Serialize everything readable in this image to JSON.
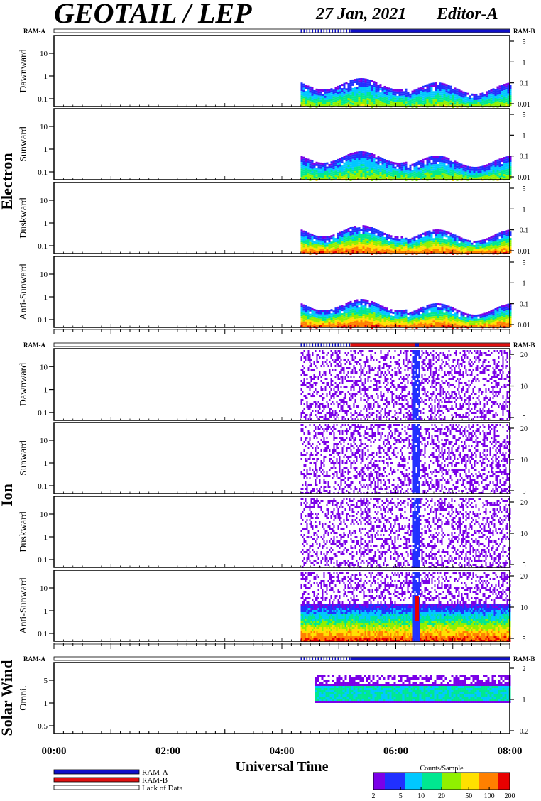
{
  "header": {
    "title": "GEOTAIL / LEP",
    "date": "27 Jan, 2021",
    "editor": "Editor-A"
  },
  "ram_a_label": "RAM-A",
  "ram_b_label": "RAM-B",
  "colors": {
    "ram_a": "#1010c8",
    "ram_b": "#e01010",
    "lack": "#ffffff"
  },
  "chart_data": {
    "type": "heatmap",
    "xlabel": "Universal Time",
    "x_ticks": [
      "00:00",
      "02:00",
      "04:00",
      "06:00",
      "08:00"
    ],
    "xlim_hours": [
      0,
      8
    ],
    "data_start_hour": 4.33,
    "groups": [
      {
        "label": "Electron",
        "panels": [
          {
            "label": "Dawnward",
            "left_ticks": [
              "10",
              "1",
              "0.1"
            ],
            "right_ticks": [
              "5",
              "1",
              "0.1",
              "0.01"
            ]
          },
          {
            "label": "Sunward",
            "left_ticks": [
              "10",
              "1",
              "0.1"
            ],
            "right_ticks": [
              "5",
              "1",
              "0.1",
              "0.01"
            ]
          },
          {
            "label": "Duskward",
            "left_ticks": [
              "10",
              "1",
              "0.1"
            ],
            "right_ticks": [
              "5",
              "1",
              "0.1",
              "0.01"
            ]
          },
          {
            "label": "Anti-Sunward",
            "left_ticks": [
              "10",
              "1",
              "0.1"
            ],
            "right_ticks": [
              "5",
              "1",
              "0.1",
              "0.01"
            ]
          }
        ]
      },
      {
        "label": "Ion",
        "panels": [
          {
            "label": "Dawnward",
            "left_ticks": [
              "10",
              "1",
              "0.1"
            ],
            "right_ticks": [
              "20",
              "10",
              "5"
            ]
          },
          {
            "label": "Sunward",
            "left_ticks": [
              "10",
              "1",
              "0.1"
            ],
            "right_ticks": [
              "20",
              "10",
              "5"
            ]
          },
          {
            "label": "Duskward",
            "left_ticks": [
              "10",
              "1",
              "0.1"
            ],
            "right_ticks": [
              "20",
              "10",
              "5"
            ]
          },
          {
            "label": "Anti-Sunward",
            "left_ticks": [
              "10",
              "1",
              "0.1"
            ],
            "right_ticks": [
              "20",
              "10",
              "5"
            ]
          }
        ]
      },
      {
        "label": "Solar Wind",
        "panels": [
          {
            "label": "Omni.",
            "left_ticks": [
              "5",
              "1",
              "0.5"
            ],
            "right_ticks": [
              "2",
              "1",
              "0.2"
            ]
          }
        ]
      }
    ],
    "legend": {
      "items": [
        "RAM-A",
        "RAM-B",
        "Lack of Data"
      ]
    },
    "colorbar": {
      "title": "Counts/Sample",
      "ticks": [
        "2",
        "5",
        "10",
        "20",
        "50",
        "100",
        "200"
      ],
      "colors": [
        "#7b00e8",
        "#2030ff",
        "#00c8ff",
        "#00e890",
        "#90f000",
        "#ffe000",
        "#ff8000",
        "#e80000"
      ]
    }
  }
}
